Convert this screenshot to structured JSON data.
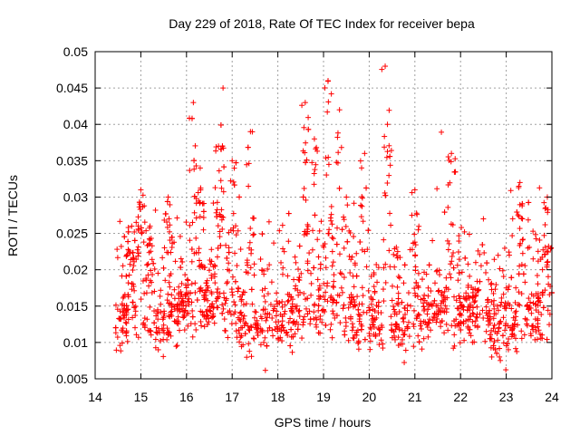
{
  "chart_data": {
    "type": "scatter",
    "title": "Day 229 of 2018, Rate Of TEC Index for receiver bepa",
    "xlabel": "GPS time / hours",
    "ylabel": "ROTI / TECUs",
    "xlim": [
      14,
      24
    ],
    "ylim": [
      0.005,
      0.05
    ],
    "x_ticks": [
      14,
      15,
      16,
      17,
      18,
      19,
      20,
      21,
      22,
      23,
      24
    ],
    "x_tick_labels": [
      "14",
      "15",
      "16",
      "17",
      "18",
      "19",
      "20",
      "21",
      "22",
      "23",
      "24"
    ],
    "y_ticks": [
      0.005,
      0.01,
      0.015,
      0.02,
      0.025,
      0.03,
      0.035,
      0.04,
      0.045,
      0.05
    ],
    "y_tick_labels": [
      "0.005",
      "0.01",
      "0.015",
      "0.02",
      "0.025",
      "0.03",
      "0.035",
      "0.04",
      "0.045",
      "0.05"
    ],
    "grid": true,
    "marker": "+",
    "color": "#ff0000",
    "series": [
      {
        "name": "ROTI",
        "x_start": 14.45,
        "x_end": 24.0,
        "samples": 1900,
        "seed": 229,
        "base_profile": [
          [
            14.45,
            0.0135
          ],
          [
            15.0,
            0.014
          ],
          [
            15.5,
            0.013
          ],
          [
            16.0,
            0.0145
          ],
          [
            16.5,
            0.016
          ],
          [
            17.0,
            0.0135
          ],
          [
            17.5,
            0.012
          ],
          [
            18.0,
            0.013
          ],
          [
            18.5,
            0.0145
          ],
          [
            19.0,
            0.016
          ],
          [
            19.5,
            0.0145
          ],
          [
            20.0,
            0.013
          ],
          [
            20.5,
            0.0125
          ],
          [
            21.0,
            0.0135
          ],
          [
            21.5,
            0.0145
          ],
          [
            22.0,
            0.014
          ],
          [
            22.5,
            0.013
          ],
          [
            23.0,
            0.012
          ],
          [
            23.5,
            0.0135
          ],
          [
            24.0,
            0.0145
          ]
        ],
        "spikes": [
          [
            14.8,
            0.026
          ],
          [
            15.0,
            0.031
          ],
          [
            15.2,
            0.026
          ],
          [
            15.6,
            0.03
          ],
          [
            16.15,
            0.043
          ],
          [
            16.3,
            0.034
          ],
          [
            16.7,
            0.037
          ],
          [
            16.8,
            0.045
          ],
          [
            17.0,
            0.035
          ],
          [
            17.4,
            0.039
          ],
          [
            18.6,
            0.043
          ],
          [
            18.8,
            0.038
          ],
          [
            19.1,
            0.046
          ],
          [
            19.35,
            0.042
          ],
          [
            19.5,
            0.03
          ],
          [
            19.9,
            0.036
          ],
          [
            20.35,
            0.048
          ],
          [
            20.4,
            0.04
          ],
          [
            21.0,
            0.031
          ],
          [
            21.8,
            0.036
          ],
          [
            22.5,
            0.027
          ],
          [
            23.3,
            0.032
          ],
          [
            23.9,
            0.03
          ]
        ]
      }
    ]
  }
}
